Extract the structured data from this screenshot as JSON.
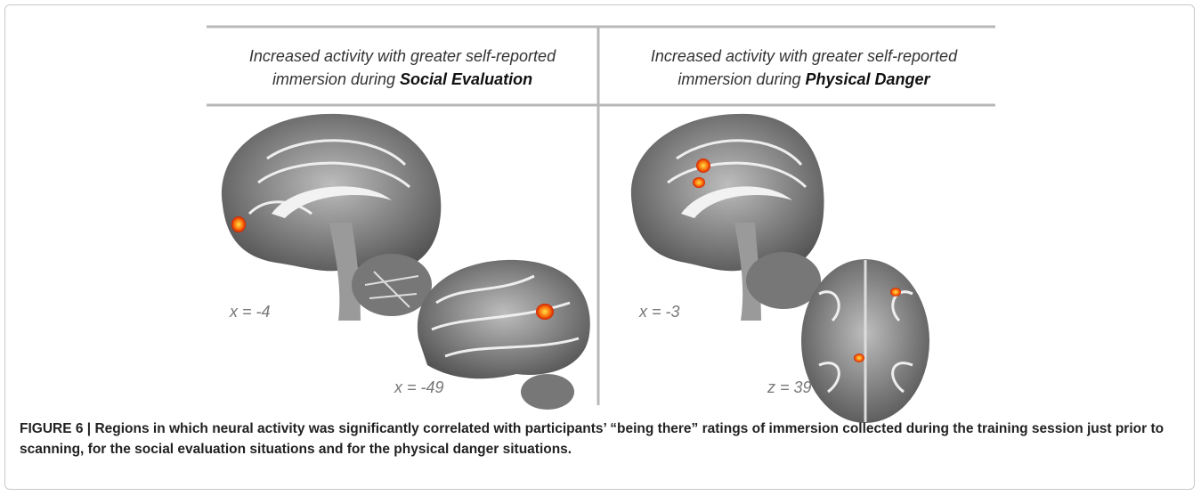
{
  "figure": {
    "panels": [
      {
        "heading": {
          "line1": "Increased activity with greater self-reported",
          "line2": "immersion during",
          "emphasis": "Social Evaluation"
        },
        "labels": [
          "x = -4",
          "x = -49"
        ]
      },
      {
        "heading": {
          "line1": "Increased activity with greater self-reported",
          "line2": "immersion during",
          "emphasis": "Physical Danger"
        },
        "labels": [
          "x = -3",
          "z = 39"
        ]
      }
    ],
    "caption": {
      "label": "FIGURE 6 |",
      "text": "Regions in which neural activity was significantly correlated with participants’ “being there” ratings of immersion collected during the training session just prior to scanning, for the social evaluation situations and for the physical danger situations."
    }
  }
}
